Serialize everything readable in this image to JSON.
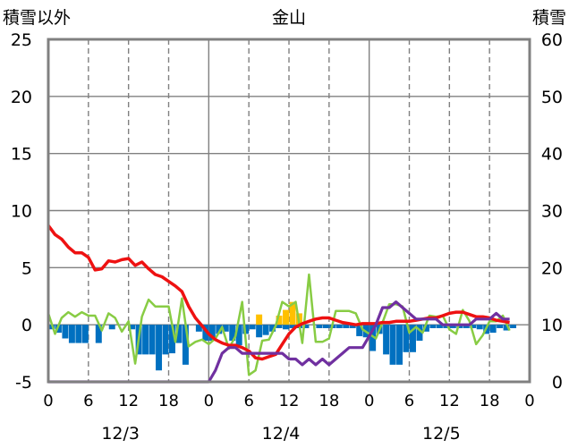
{
  "chart_data": {
    "type": "line",
    "title": "金山",
    "left_axis_label": "積雪以外",
    "right_axis_label": "積雪",
    "ylim_left": [
      -5,
      25
    ],
    "ylim_right": [
      0,
      60
    ],
    "left_ticks": [
      "25",
      "20",
      "15",
      "10",
      "5",
      "0",
      "-5"
    ],
    "right_ticks": [
      "60",
      "50",
      "40",
      "30",
      "20",
      "10",
      "0"
    ],
    "x_hour_ticks": [
      "0",
      "6",
      "12",
      "18",
      "0",
      "6",
      "12",
      "18",
      "0",
      "6",
      "12",
      "18",
      "0"
    ],
    "date_labels": [
      "12/3",
      "12/4",
      "12/5"
    ],
    "x_range_hours": [
      0,
      72
    ],
    "colors": {
      "temperature": "#ee1111",
      "humidity_like": "#88cc44",
      "snow_depth": "#7030a0",
      "precip_bar": "#0070c0",
      "sun_bar": "#ffc000"
    },
    "series": [
      {
        "key": "red",
        "axis": "left",
        "x": [
          0,
          1,
          2,
          3,
          4,
          5,
          6,
          7,
          8,
          9,
          10,
          11,
          12,
          13,
          14,
          15,
          16,
          17,
          18,
          19,
          20,
          21,
          22,
          23,
          24,
          25,
          26,
          27,
          28,
          29,
          30,
          31,
          32,
          33,
          34,
          35,
          36,
          37,
          38,
          39,
          40,
          41,
          42,
          43,
          44,
          45,
          46,
          47,
          48,
          49,
          50,
          51,
          52,
          53,
          54,
          55,
          56,
          57,
          58,
          59,
          60,
          61,
          62,
          63,
          64,
          65,
          66,
          67,
          68,
          69
        ],
        "y": [
          8.7,
          7.9,
          7.5,
          6.8,
          6.3,
          6.3,
          5.9,
          4.8,
          4.9,
          5.6,
          5.5,
          5.7,
          5.8,
          5.2,
          5.5,
          4.9,
          4.4,
          4.2,
          3.8,
          3.4,
          2.9,
          1.6,
          0.6,
          -0.1,
          -0.8,
          -1.3,
          -1.6,
          -1.8,
          -1.8,
          -2.0,
          -2.3,
          -2.9,
          -3.0,
          -2.8,
          -2.6,
          -1.7,
          -0.8,
          -0.2,
          0.1,
          0.3,
          0.5,
          0.6,
          0.6,
          0.4,
          0.2,
          0.1,
          0.0,
          0.1,
          0.1,
          0.1,
          0.2,
          0.2,
          0.3,
          0.3,
          0.3,
          0.4,
          0.5,
          0.6,
          0.6,
          0.8,
          1.0,
          1.1,
          1.1,
          0.9,
          0.7,
          0.7,
          0.6,
          0.4,
          0.3,
          0.2
        ]
      },
      {
        "key": "green",
        "axis": "left",
        "x": [
          0,
          1,
          2,
          3,
          4,
          5,
          6,
          7,
          8,
          9,
          10,
          11,
          12,
          13,
          14,
          15,
          16,
          17,
          18,
          19,
          20,
          21,
          22,
          23,
          24,
          25,
          26,
          27,
          28,
          29,
          30,
          31,
          32,
          33,
          34,
          35,
          36,
          37,
          38,
          39,
          40,
          41,
          42,
          43,
          44,
          45,
          46,
          47,
          48,
          49,
          50,
          51,
          52,
          53,
          54,
          55,
          56,
          57,
          58,
          59,
          60,
          61,
          62,
          63,
          64,
          65,
          66,
          67,
          68,
          69
        ],
        "y": [
          1.0,
          -0.8,
          0.6,
          1.1,
          0.7,
          1.1,
          0.8,
          0.8,
          -0.5,
          1.0,
          0.6,
          -0.6,
          0.3,
          -3.4,
          0.7,
          2.2,
          1.6,
          1.6,
          1.6,
          -1.5,
          2.3,
          -1.9,
          -1.5,
          -1.3,
          -1.7,
          -1.2,
          -0.2,
          -2.1,
          -1.0,
          2.0,
          -4.4,
          -4.0,
          -1.4,
          -1.3,
          -0.1,
          2.0,
          1.6,
          2.0,
          -1.6,
          4.4,
          -1.5,
          -1.5,
          -1.2,
          1.2,
          1.2,
          1.2,
          1.0,
          -0.4,
          -0.8,
          -1.2,
          0.2,
          1.8,
          1.8,
          1.6,
          -0.7,
          -0.2,
          -0.7,
          0.8,
          0.7,
          0.8,
          -0.4,
          -0.8,
          1.3,
          0.3,
          -1.7,
          -0.9,
          0.3,
          0.3,
          0.8,
          -0.5
        ]
      },
      {
        "key": "purple",
        "axis": "right",
        "x": [
          0,
          23,
          24,
          25,
          26,
          27,
          28,
          29,
          30,
          31,
          32,
          33,
          34,
          35,
          36,
          37,
          38,
          39,
          40,
          41,
          42,
          43,
          44,
          45,
          46,
          47,
          48,
          49,
          50,
          51,
          52,
          53,
          54,
          55,
          56,
          57,
          58,
          59,
          60,
          61,
          62,
          63,
          64,
          65,
          66,
          67,
          68,
          69
        ],
        "y": [
          0,
          0,
          0,
          2,
          5,
          6,
          6,
          5,
          5,
          5,
          5,
          5,
          5,
          5,
          4,
          4,
          3,
          4,
          3,
          4,
          3,
          4,
          5,
          6,
          6,
          6,
          8,
          10,
          13,
          13,
          14,
          13,
          12,
          11,
          11,
          11,
          11,
          10,
          10,
          10,
          10,
          10,
          11,
          11,
          11,
          12,
          11,
          11
        ]
      }
    ],
    "bars": [
      {
        "key": "blue",
        "axis": "left",
        "x": [
          0,
          1,
          2,
          3,
          4,
          5,
          7,
          9,
          12,
          13,
          14,
          15,
          16,
          17,
          18,
          19,
          20,
          22,
          23,
          24,
          25,
          26,
          27,
          28,
          29,
          30,
          31,
          32,
          33,
          34,
          35,
          36,
          37,
          38,
          40,
          41,
          42,
          43,
          44,
          45,
          46,
          47,
          48,
          49,
          50,
          51,
          52,
          53,
          54,
          55,
          56,
          57,
          58,
          59,
          60,
          61,
          62,
          63,
          64,
          65,
          66,
          67,
          68,
          69
        ],
        "y": [
          -0.4,
          -0.7,
          -1.2,
          -1.6,
          -1.6,
          -1.6,
          -1.6,
          -0.4,
          -0.4,
          -2.6,
          -2.6,
          -2.6,
          -4.0,
          -2.6,
          -2.5,
          -1.6,
          -3.5,
          -0.6,
          -1.4,
          -1.4,
          -0.8,
          -0.6,
          -1.4,
          -1.8,
          -0.8,
          -0.4,
          -1.1,
          -0.9,
          -0.6,
          -0.3,
          -0.4,
          -0.3,
          -0.3,
          -0.3,
          -0.3,
          -0.3,
          -0.3,
          -0.3,
          -0.3,
          -0.3,
          -1.0,
          -1.1,
          -2.3,
          -0.8,
          -2.6,
          -3.5,
          -3.5,
          -2.4,
          -2.4,
          -1.4,
          -0.6,
          -0.3,
          -0.3,
          -0.3,
          -0.3,
          -0.3,
          -0.3,
          -0.3,
          -0.4,
          -0.8,
          -0.7,
          -0.3,
          -0.5,
          -0.3
        ]
      },
      {
        "key": "orange",
        "axis": "left",
        "x": [
          31,
          34,
          35,
          36,
          37
        ],
        "y": [
          0.9,
          0.8,
          1.3,
          2.0,
          1.0
        ]
      }
    ]
  }
}
